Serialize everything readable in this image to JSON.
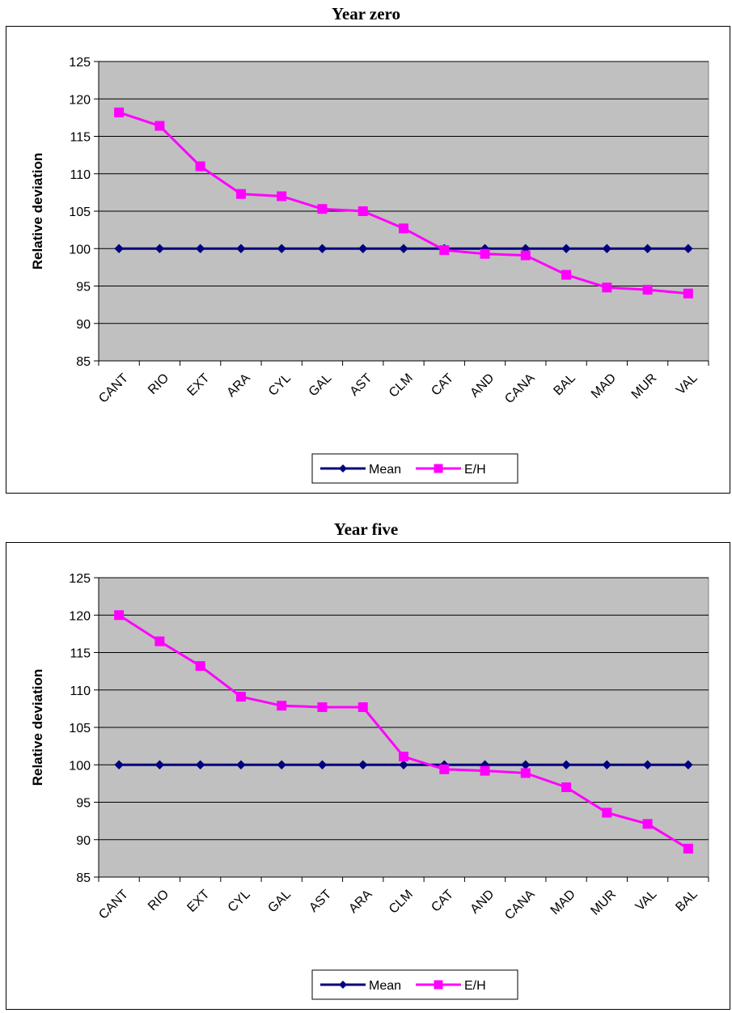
{
  "colors": {
    "plot_background": "#c0c0c0",
    "mean_series": "#000080",
    "eh_series": "#ff00ff"
  },
  "chart_data": [
    {
      "type": "line",
      "title": "Year zero",
      "ylabel": "Relative deviation",
      "xlabel": "",
      "ylim": [
        85,
        125
      ],
      "yticks": [
        85,
        90,
        95,
        100,
        105,
        110,
        115,
        120,
        125
      ],
      "grid": true,
      "legend_placement": "bottom",
      "categories": [
        "CANT",
        "RIO",
        "EXT",
        "ARA",
        "CYL",
        "GAL",
        "AST",
        "CLM",
        "CAT",
        "AND",
        "CANA",
        "BAL",
        "MAD",
        "MUR",
        "VAL"
      ],
      "series": [
        {
          "name": "Mean",
          "marker": "diamond",
          "values": [
            100,
            100,
            100,
            100,
            100,
            100,
            100,
            100,
            100,
            100,
            100,
            100,
            100,
            100,
            100
          ]
        },
        {
          "name": "E/H",
          "marker": "square",
          "values": [
            118.2,
            116.4,
            111.0,
            107.3,
            107.0,
            105.3,
            105.0,
            102.7,
            99.8,
            99.3,
            99.1,
            96.5,
            94.8,
            94.5,
            94.0
          ]
        }
      ]
    },
    {
      "type": "line",
      "title": "Year five",
      "ylabel": "Relative deviation",
      "xlabel": "",
      "ylim": [
        85,
        125
      ],
      "yticks": [
        85,
        90,
        95,
        100,
        105,
        110,
        115,
        120,
        125
      ],
      "grid": true,
      "legend_placement": "bottom",
      "categories": [
        "CANT",
        "RIO",
        "EXT",
        "CYL",
        "GAL",
        "AST",
        "ARA",
        "CLM",
        "CAT",
        "AND",
        "CANA",
        "MAD",
        "MUR",
        "VAL",
        "BAL"
      ],
      "series": [
        {
          "name": "Mean",
          "marker": "diamond",
          "values": [
            100,
            100,
            100,
            100,
            100,
            100,
            100,
            100,
            100,
            100,
            100,
            100,
            100,
            100,
            100
          ]
        },
        {
          "name": "E/H",
          "marker": "square",
          "values": [
            120.0,
            116.5,
            113.2,
            109.1,
            107.9,
            107.7,
            107.7,
            101.1,
            99.4,
            99.2,
            98.9,
            97.0,
            93.6,
            92.1,
            88.8
          ]
        }
      ]
    }
  ]
}
